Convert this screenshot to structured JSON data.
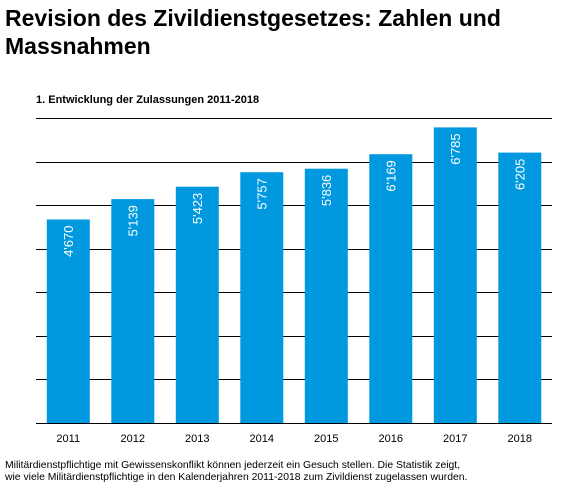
{
  "header": {
    "title_line1": "Revision des Zivildienstgesetzes: Zahlen und",
    "title_line2": "Massnahmen"
  },
  "chart_data": {
    "type": "bar",
    "title": "1.  Entwicklung der Zulassungen 2011-2018",
    "xlabel": "",
    "ylabel": "",
    "categories": [
      "2011",
      "2012",
      "2013",
      "2014",
      "2015",
      "2016",
      "2017",
      "2018"
    ],
    "values": [
      4670,
      5139,
      5423,
      5757,
      5836,
      6169,
      6785,
      6205
    ],
    "value_labels": [
      "4'670",
      "5'139",
      "5'423",
      "5'757",
      "5'836",
      "6'169",
      "6'785",
      "6'205"
    ],
    "ylim": [
      0,
      7000
    ],
    "grid": true,
    "legend": "none",
    "bar_color": "#0099e0"
  },
  "footnote": {
    "line1": "Militärdienstpflichtige mit Gewissenskonflikt können jederzeit ein Gesuch stellen. Die Statistik zeigt,",
    "line2": "wie viele Militärdienstpflichtige in den Kalenderjahren 2011-2018 zum Zivildienst zugelassen wurden."
  }
}
